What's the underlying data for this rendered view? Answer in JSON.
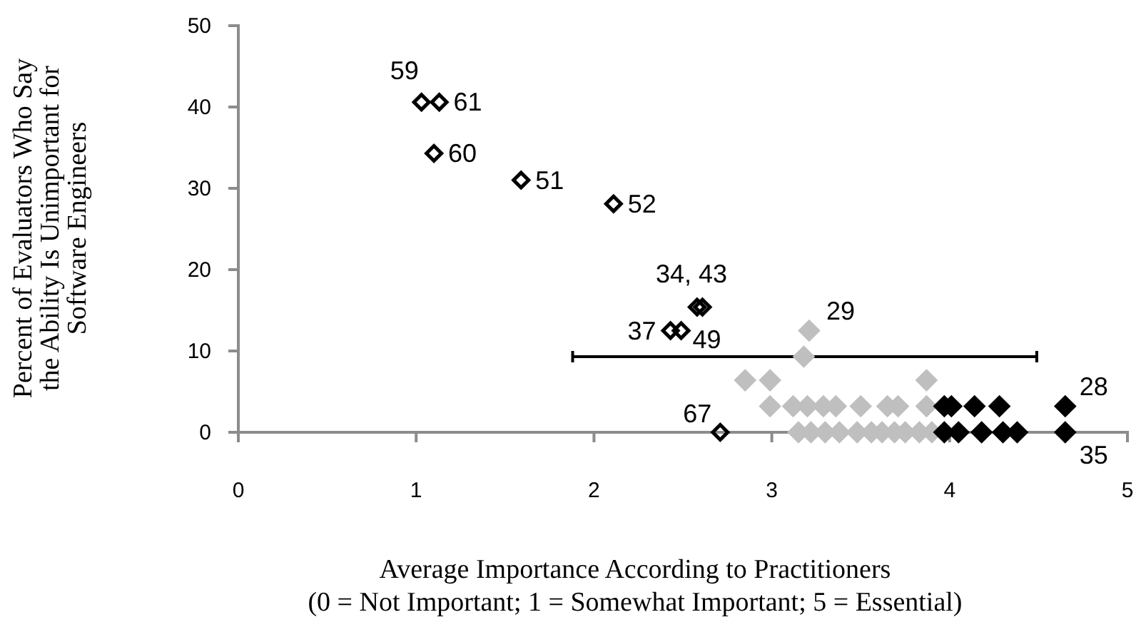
{
  "chart_data": {
    "type": "scatter",
    "xlabel": "Average Importance According to Practitioners\n(0 = Not Important; 1 = Somewhat Important; 5 = Essential)",
    "ylabel": "Percent of Evaluators Who Say\nthe Ability Is Unimportant for\nSoftware Engineers",
    "xlim": [
      0,
      5
    ],
    "ylim": [
      0,
      50
    ],
    "xticks": [
      0,
      1,
      2,
      3,
      4,
      5
    ],
    "yticks": [
      0,
      10,
      20,
      30,
      40,
      50
    ],
    "grid": false,
    "marker": "diamond",
    "series": [
      {
        "color": "#000000",
        "marker": "diamond-open",
        "x": [
          1.03,
          1.13,
          1.1,
          1.59,
          2.11,
          2.58,
          2.61,
          2.43,
          2.49,
          2.71
        ],
        "values": [
          40.6,
          40.6,
          34.3,
          31.0,
          28.1,
          15.4,
          15.4,
          12.5,
          12.5,
          0
        ]
      },
      {
        "color": "#bfbfbf",
        "x": [
          3.21,
          3.18,
          2.85,
          2.99,
          3.87,
          2.99,
          3.12,
          3.2,
          3.29,
          3.36,
          3.5,
          3.65,
          3.71,
          3.87,
          3.15,
          3.22,
          3.3,
          3.38,
          3.48,
          3.56,
          3.62,
          3.69,
          3.75,
          3.83,
          3.9
        ],
        "values": [
          12.5,
          9.3,
          6.4,
          6.4,
          6.4,
          3.2,
          3.2,
          3.2,
          3.2,
          3.2,
          3.2,
          3.2,
          3.2,
          3.2,
          0,
          0,
          0,
          0,
          0,
          0,
          0,
          0,
          0,
          0,
          0
        ],
        "xerrors": [
          null,
          [
            1.88,
            4.49
          ],
          null,
          null,
          null,
          null,
          null,
          null,
          null,
          null,
          null,
          null,
          null,
          null,
          null,
          null,
          null,
          null,
          null,
          null,
          null,
          null,
          null,
          null,
          null
        ]
      },
      {
        "color": "#000000",
        "x": [
          3.97,
          4.01,
          4.14,
          4.28,
          3.97,
          4.05,
          4.18,
          4.3,
          4.38,
          4.65,
          4.65
        ],
        "values": [
          3.2,
          3.2,
          3.2,
          3.2,
          0,
          0,
          0,
          0,
          0,
          3.2,
          0
        ]
      }
    ],
    "annotations": [
      {
        "text": "59",
        "x": 1.03,
        "y": 40.6
      },
      {
        "text": "61",
        "x": 1.13,
        "y": 40.6
      },
      {
        "text": "60",
        "x": 1.1,
        "y": 34.3
      },
      {
        "text": "51",
        "x": 1.59,
        "y": 31.0
      },
      {
        "text": "52",
        "x": 2.11,
        "y": 28.1
      },
      {
        "text": "34, 43",
        "x": 2.58,
        "y": 15.4
      },
      {
        "text": "37",
        "x": 2.43,
        "y": 12.5
      },
      {
        "text": "49",
        "x": 2.49,
        "y": 12.5
      },
      {
        "text": "29",
        "x": 3.21,
        "y": 12.5
      },
      {
        "text": "67",
        "x": 2.71,
        "y": 0
      },
      {
        "text": "28",
        "x": 4.65,
        "y": 3.2
      },
      {
        "text": "35",
        "x": 4.65,
        "y": 0
      }
    ]
  }
}
